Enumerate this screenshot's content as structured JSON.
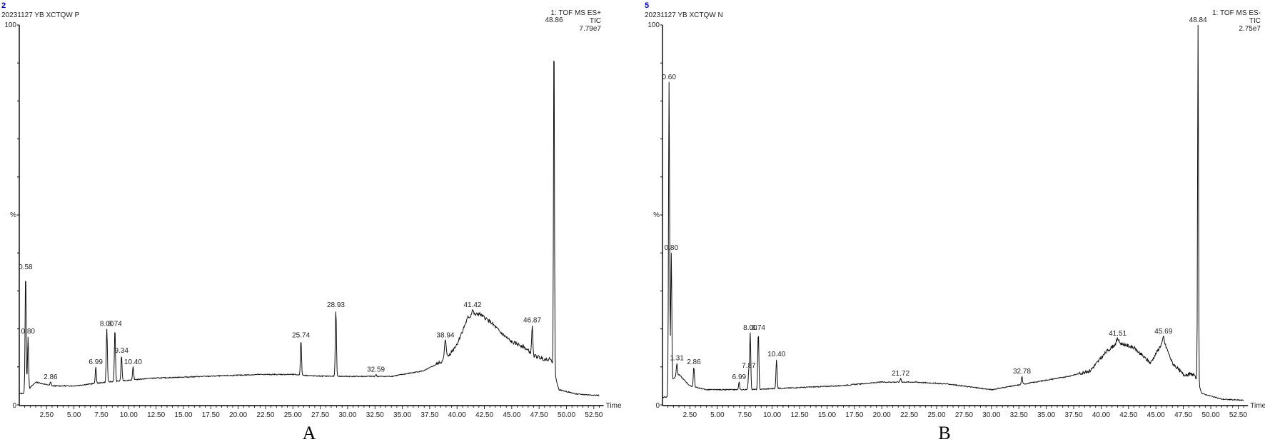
{
  "panels": [
    {
      "id": "A",
      "panel_number": "2",
      "sample_name": "20231127 YB XCTQW P",
      "function_label": "1: TOF MS ES+",
      "trace_label": "TIC",
      "intensity": "7.79e7",
      "caption": "A",
      "y_top_label": "100",
      "y_mid_label": "%",
      "y_bottom_label": "0",
      "x_axis_label": "Time",
      "peaks": [
        "0.58",
        "0.80",
        "2.86",
        "6.99",
        "8.00",
        "8.74",
        "9.34",
        "10.40",
        "25.74",
        "28.93",
        "32.59",
        "38.94",
        "41.42",
        "46.87",
        "48.86"
      ]
    },
    {
      "id": "B",
      "panel_number": "5",
      "sample_name": "20231127 YB XCTQW N",
      "function_label": "1: TOF MS ES-",
      "trace_label": "TIC",
      "intensity": "2.75e7",
      "caption": "B",
      "y_top_label": "100",
      "y_mid_label": "%",
      "y_bottom_label": "0",
      "x_axis_label": "Time",
      "peaks": [
        "0.60",
        "0.80",
        "1.31",
        "2.86",
        "6.99",
        "7.87",
        "8.00",
        "8.74",
        "10.40",
        "21.72",
        "32.78",
        "41.51",
        "45.69",
        "48.84"
      ]
    }
  ],
  "chart_data": [
    {
      "type": "line",
      "title": "20231127 YB XCTQW P — 1: TOF MS ES+ TIC 7.79e7",
      "xlabel": "Time",
      "ylabel": "%",
      "xlim": [
        0,
        53.5
      ],
      "ylim": [
        0,
        100
      ],
      "x_ticks": [
        "2.50",
        "5.00",
        "7.50",
        "10.00",
        "12.50",
        "15.00",
        "17.50",
        "20.00",
        "22.50",
        "25.00",
        "27.50",
        "30.00",
        "32.50",
        "35.00",
        "37.50",
        "40.00",
        "42.50",
        "45.00",
        "47.50",
        "50.00",
        "52.50"
      ],
      "labeled_peaks": [
        {
          "rt": 0.58,
          "pct": 35
        },
        {
          "rt": 0.8,
          "pct": 18
        },
        {
          "rt": 2.86,
          "pct": 6
        },
        {
          "rt": 6.99,
          "pct": 10
        },
        {
          "rt": 8.0,
          "pct": 20
        },
        {
          "rt": 8.74,
          "pct": 20
        },
        {
          "rt": 9.34,
          "pct": 13
        },
        {
          "rt": 10.4,
          "pct": 10
        },
        {
          "rt": 25.74,
          "pct": 17
        },
        {
          "rt": 28.93,
          "pct": 25
        },
        {
          "rt": 32.59,
          "pct": 8
        },
        {
          "rt": 38.94,
          "pct": 17
        },
        {
          "rt": 41.42,
          "pct": 25
        },
        {
          "rt": 46.87,
          "pct": 21
        },
        {
          "rt": 48.86,
          "pct": 100
        }
      ],
      "baseline_points": [
        [
          0,
          3
        ],
        [
          0.5,
          3
        ],
        [
          1.5,
          6
        ],
        [
          3,
          5
        ],
        [
          5,
          5
        ],
        [
          8,
          6
        ],
        [
          12,
          7
        ],
        [
          17,
          7.5
        ],
        [
          22,
          8
        ],
        [
          25,
          8
        ],
        [
          27,
          7.6
        ],
        [
          30,
          7.5
        ],
        [
          34,
          7.5
        ],
        [
          37,
          9
        ],
        [
          39,
          12
        ],
        [
          40,
          16
        ],
        [
          41,
          23
        ],
        [
          42,
          24
        ],
        [
          43,
          22
        ],
        [
          44,
          19
        ],
        [
          45,
          16.5
        ],
        [
          46,
          15.5
        ],
        [
          47,
          13
        ],
        [
          48,
          12
        ],
        [
          48.6,
          12
        ],
        [
          49.3,
          4
        ],
        [
          51,
          2.8
        ],
        [
          53,
          2.5
        ]
      ]
    },
    {
      "type": "line",
      "title": "20231127 YB XCTQW N — 1: TOF MS ES- TIC 2.75e7",
      "xlabel": "Time",
      "ylabel": "%",
      "xlim": [
        0,
        53.5
      ],
      "ylim": [
        0,
        100
      ],
      "x_ticks": [
        "2.50",
        "5.00",
        "7.50",
        "10.00",
        "12.50",
        "15.00",
        "17.50",
        "20.00",
        "22.50",
        "25.00",
        "27.50",
        "30.00",
        "32.50",
        "35.00",
        "37.50",
        "40.00",
        "42.50",
        "45.00",
        "47.50",
        "50.00",
        "52.50"
      ],
      "labeled_peaks": [
        {
          "rt": 0.6,
          "pct": 85
        },
        {
          "rt": 0.8,
          "pct": 40
        },
        {
          "rt": 1.31,
          "pct": 11
        },
        {
          "rt": 2.86,
          "pct": 10
        },
        {
          "rt": 6.99,
          "pct": 6
        },
        {
          "rt": 7.87,
          "pct": 9
        },
        {
          "rt": 8.0,
          "pct": 19
        },
        {
          "rt": 8.74,
          "pct": 19
        },
        {
          "rt": 10.4,
          "pct": 12
        },
        {
          "rt": 21.72,
          "pct": 7
        },
        {
          "rt": 32.78,
          "pct": 7.5
        },
        {
          "rt": 41.51,
          "pct": 17.5
        },
        {
          "rt": 45.69,
          "pct": 18
        },
        {
          "rt": 48.84,
          "pct": 100
        }
      ],
      "baseline_points": [
        [
          0,
          2
        ],
        [
          0.4,
          2
        ],
        [
          1,
          7
        ],
        [
          1.5,
          8
        ],
        [
          2.5,
          5
        ],
        [
          4,
          4
        ],
        [
          8,
          4
        ],
        [
          12,
          4.5
        ],
        [
          16,
          5
        ],
        [
          20,
          6
        ],
        [
          23,
          6
        ],
        [
          26,
          5.5
        ],
        [
          30,
          4
        ],
        [
          34,
          6
        ],
        [
          37,
          7.5
        ],
        [
          39,
          9
        ],
        [
          40.5,
          14
        ],
        [
          41.5,
          16.5
        ],
        [
          43,
          15
        ],
        [
          44.5,
          11
        ],
        [
          45.7,
          17
        ],
        [
          46.5,
          11
        ],
        [
          47.5,
          8
        ],
        [
          48.5,
          8
        ],
        [
          49.2,
          3
        ],
        [
          51,
          1.5
        ],
        [
          53,
          1.2
        ]
      ]
    }
  ]
}
